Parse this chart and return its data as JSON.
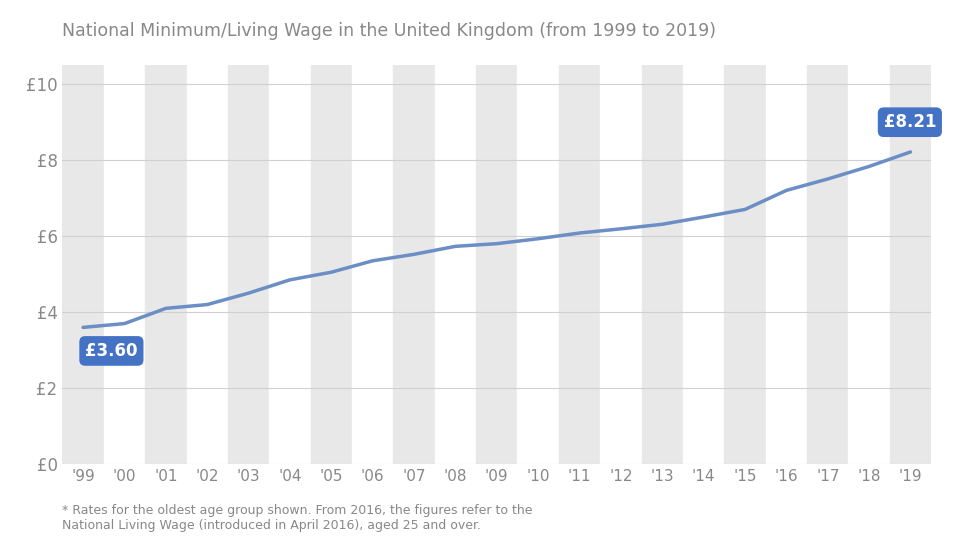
{
  "title": "National Minimum/Living Wage in the United Kingdom (from 1999 to 2019)",
  "years": [
    1999,
    2000,
    2001,
    2002,
    2003,
    2004,
    2005,
    2006,
    2007,
    2008,
    2009,
    2010,
    2011,
    2012,
    2013,
    2014,
    2015,
    2016,
    2017,
    2018,
    2019
  ],
  "values": [
    3.6,
    3.7,
    4.1,
    4.2,
    4.5,
    4.85,
    5.05,
    5.35,
    5.52,
    5.73,
    5.8,
    5.93,
    6.08,
    6.19,
    6.31,
    6.5,
    6.7,
    7.2,
    7.5,
    7.83,
    8.21
  ],
  "x_labels": [
    "'99",
    "'00",
    "'01",
    "'02",
    "'03",
    "'04",
    "'05",
    "'06",
    "'07",
    "'08",
    "'09",
    "'10",
    "'11",
    "'12",
    "'13",
    "'14",
    "'15",
    "'16",
    "'17",
    "'18",
    "'19"
  ],
  "y_ticks": [
    0,
    2,
    4,
    6,
    8,
    10
  ],
  "y_labels": [
    "£0",
    "£2",
    "£4",
    "£6",
    "£8",
    "£10"
  ],
  "line_color": "#6b8ec5",
  "bg_color": "#ffffff",
  "stripe_color": "#e8e8e8",
  "label_start": "£3.60",
  "label_end": "£8.21",
  "label_box_color": "#4472c4",
  "label_text_color": "#ffffff",
  "footnote": "* Rates for the oldest age group shown. From 2016, the figures refer to the",
  "footnote2": "National Living Wage (introduced in April 2016), aged 25 and over.",
  "ylim": [
    0,
    10.5
  ],
  "title_color": "#888888",
  "tick_color": "#888888",
  "grid_color": "#d0d0d0"
}
